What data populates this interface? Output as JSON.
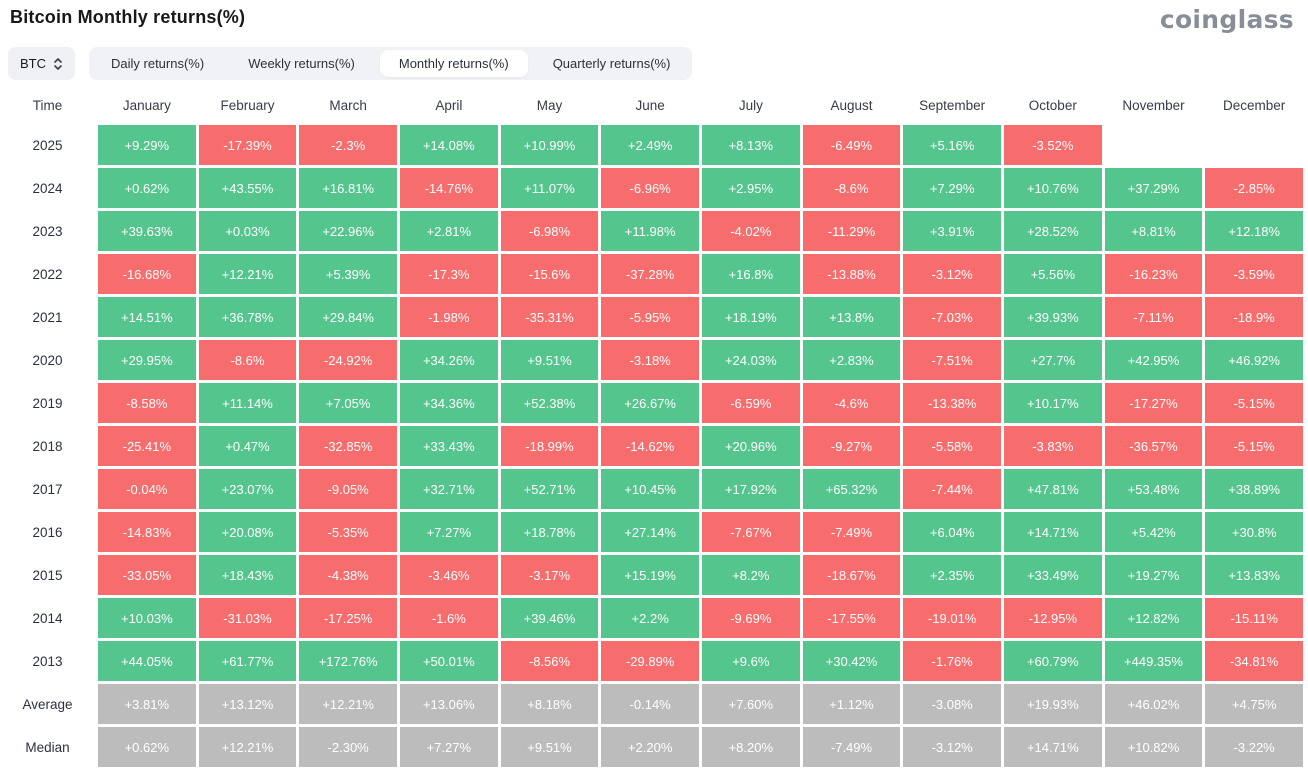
{
  "page": {
    "title": "Bitcoin Monthly returns(%)",
    "logo": "coinglass"
  },
  "controls": {
    "symbol_select": {
      "value": "BTC",
      "icon": "sort-updown-icon"
    },
    "tabs": [
      {
        "label": "Daily returns(%)",
        "active": false
      },
      {
        "label": "Weekly returns(%)",
        "active": false
      },
      {
        "label": "Monthly returns(%)",
        "active": true
      },
      {
        "label": "Quarterly returns(%)",
        "active": false
      }
    ]
  },
  "colors": {
    "positive": "#55c58e",
    "negative": "#f76d6d",
    "neutral": "#bcbcbc"
  },
  "chart_data": {
    "type": "heatmap",
    "title": "Bitcoin Monthly returns(%)",
    "legend_position": "none",
    "columns": [
      "Time",
      "January",
      "February",
      "March",
      "April",
      "May",
      "June",
      "July",
      "August",
      "September",
      "October",
      "November",
      "December"
    ],
    "rows": [
      {
        "label": "2025",
        "values": [
          "+9.29%",
          "-17.39%",
          "-2.3%",
          "+14.08%",
          "+10.99%",
          "+2.49%",
          "+8.13%",
          "-6.49%",
          "+5.16%",
          "-3.52%",
          "",
          ""
        ]
      },
      {
        "label": "2024",
        "values": [
          "+0.62%",
          "+43.55%",
          "+16.81%",
          "-14.76%",
          "+11.07%",
          "-6.96%",
          "+2.95%",
          "-8.6%",
          "+7.29%",
          "+10.76%",
          "+37.29%",
          "-2.85%"
        ]
      },
      {
        "label": "2023",
        "values": [
          "+39.63%",
          "+0.03%",
          "+22.96%",
          "+2.81%",
          "-6.98%",
          "+11.98%",
          "-4.02%",
          "-11.29%",
          "+3.91%",
          "+28.52%",
          "+8.81%",
          "+12.18%"
        ]
      },
      {
        "label": "2022",
        "values": [
          "-16.68%",
          "+12.21%",
          "+5.39%",
          "-17.3%",
          "-15.6%",
          "-37.28%",
          "+16.8%",
          "-13.88%",
          "-3.12%",
          "+5.56%",
          "-16.23%",
          "-3.59%"
        ]
      },
      {
        "label": "2021",
        "values": [
          "+14.51%",
          "+36.78%",
          "+29.84%",
          "-1.98%",
          "-35.31%",
          "-5.95%",
          "+18.19%",
          "+13.8%",
          "-7.03%",
          "+39.93%",
          "-7.11%",
          "-18.9%"
        ]
      },
      {
        "label": "2020",
        "values": [
          "+29.95%",
          "-8.6%",
          "-24.92%",
          "+34.26%",
          "+9.51%",
          "-3.18%",
          "+24.03%",
          "+2.83%",
          "-7.51%",
          "+27.7%",
          "+42.95%",
          "+46.92%"
        ]
      },
      {
        "label": "2019",
        "values": [
          "-8.58%",
          "+11.14%",
          "+7.05%",
          "+34.36%",
          "+52.38%",
          "+26.67%",
          "-6.59%",
          "-4.6%",
          "-13.38%",
          "+10.17%",
          "-17.27%",
          "-5.15%"
        ]
      },
      {
        "label": "2018",
        "values": [
          "-25.41%",
          "+0.47%",
          "-32.85%",
          "+33.43%",
          "-18.99%",
          "-14.62%",
          "+20.96%",
          "-9.27%",
          "-5.58%",
          "-3.83%",
          "-36.57%",
          "-5.15%"
        ]
      },
      {
        "label": "2017",
        "values": [
          "-0.04%",
          "+23.07%",
          "-9.05%",
          "+32.71%",
          "+52.71%",
          "+10.45%",
          "+17.92%",
          "+65.32%",
          "-7.44%",
          "+47.81%",
          "+53.48%",
          "+38.89%"
        ]
      },
      {
        "label": "2016",
        "values": [
          "-14.83%",
          "+20.08%",
          "-5.35%",
          "+7.27%",
          "+18.78%",
          "+27.14%",
          "-7.67%",
          "-7.49%",
          "+6.04%",
          "+14.71%",
          "+5.42%",
          "+30.8%"
        ]
      },
      {
        "label": "2015",
        "values": [
          "-33.05%",
          "+18.43%",
          "-4.38%",
          "-3.46%",
          "-3.17%",
          "+15.19%",
          "+8.2%",
          "-18.67%",
          "+2.35%",
          "+33.49%",
          "+19.27%",
          "+13.83%"
        ]
      },
      {
        "label": "2014",
        "values": [
          "+10.03%",
          "-31.03%",
          "-17.25%",
          "-1.6%",
          "+39.46%",
          "+2.2%",
          "-9.69%",
          "-17.55%",
          "-19.01%",
          "-12.95%",
          "+12.82%",
          "-15.11%"
        ]
      },
      {
        "label": "2013",
        "values": [
          "+44.05%",
          "+61.77%",
          "+172.76%",
          "+50.01%",
          "-8.56%",
          "-29.89%",
          "+9.6%",
          "+30.42%",
          "-1.76%",
          "+60.79%",
          "+449.35%",
          "-34.81%"
        ]
      },
      {
        "label": "Average",
        "style": "neutral",
        "values": [
          "+3.81%",
          "+13.12%",
          "+12.21%",
          "+13.06%",
          "+8.18%",
          "-0.14%",
          "+7.60%",
          "+1.12%",
          "-3.08%",
          "+19.93%",
          "+46.02%",
          "+4.75%"
        ]
      },
      {
        "label": "Median",
        "style": "neutral",
        "values": [
          "+0.62%",
          "+12.21%",
          "-2.30%",
          "+7.27%",
          "+9.51%",
          "+2.20%",
          "+8.20%",
          "-7.49%",
          "-3.12%",
          "+14.71%",
          "+10.82%",
          "-3.22%"
        ]
      }
    ]
  }
}
